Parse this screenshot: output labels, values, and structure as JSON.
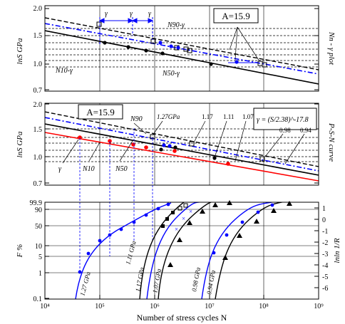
{
  "figure": {
    "x_axis_title": "Number of stress cycles N",
    "x_tick_labels": [
      "10⁴",
      "10⁵",
      "10⁶",
      "10⁷",
      "10⁸",
      "10⁹"
    ]
  },
  "chart_data": [
    {
      "type": "line",
      "panel": "top",
      "side_title": "Nn - γ plot",
      "ylabel": "lnS GPa",
      "xscale": "log",
      "xlim": [
        10000,
        1000000000
      ],
      "ylim": [
        0.7,
        2.0
      ],
      "y_tick_labels": [
        "0.7",
        "1.0",
        "1.5",
        "2.0"
      ],
      "annotation_box": "A=15.9",
      "annotations": [
        "γ",
        "γ",
        "γ",
        "N90-γ",
        "N10-γ",
        "N50-γ"
      ],
      "series": [
        {
          "color": "#000000",
          "dash": "dashed",
          "x": [
            10000,
            1000000000
          ],
          "y": [
            1.56,
            0.87
          ]
        },
        {
          "color": "#0000ff",
          "dash": "dashdot",
          "x": [
            10000,
            1000000000
          ],
          "y": [
            1.5,
            0.83
          ]
        },
        {
          "color": "#000000",
          "dash": "solid",
          "x": [
            10000,
            1000000000
          ],
          "y": [
            1.44,
            0.77
          ]
        }
      ],
      "markers": [
        {
          "shape": "square",
          "color": "#000000",
          "x": [
            80000,
            200000,
            800000,
            3000000,
            5000000,
            8000000,
            60000000,
            80000000
          ],
          "y": [
            1.33,
            1.31,
            1.29,
            1.15,
            1.17,
            1.16,
            0.95,
            0.96
          ]
        },
        {
          "shape": "dot",
          "color": "#0000ff",
          "x": [
            150000,
            300000,
            2500000,
            7000000,
            40000000
          ],
          "y": [
            1.32,
            1.3,
            1.16,
            1.12,
            0.96
          ]
        },
        {
          "shape": "dot",
          "color": "#000000",
          "x": [
            100000,
            500000,
            900000,
            20000000
          ],
          "y": [
            1.3,
            1.17,
            1.16,
            0.95
          ]
        }
      ]
    },
    {
      "type": "line",
      "panel": "middle",
      "side_title": "P-S-N curve",
      "ylabel": "lnS GPa",
      "xscale": "log",
      "xlim": [
        10000,
        1000000000
      ],
      "ylim": [
        0.7,
        2.0
      ],
      "y_tick_labels": [
        "0.7",
        "1.0",
        "1.5",
        "2.0"
      ],
      "annotation_box": "A=15.9",
      "formula": "γ = (S/2.38)^-17.8",
      "annotations": [
        "1.27GPa",
        "1.17",
        "1.11",
        "1.07",
        "0.98",
        "0.94",
        "N90",
        "N10",
        "N50",
        "γ"
      ],
      "series": [
        {
          "color": "#000000",
          "dash": "dashed",
          "x": [
            10000,
            1000000000
          ],
          "y": [
            1.56,
            0.87
          ]
        },
        {
          "color": "#0000ff",
          "dash": "dashdot",
          "x": [
            10000,
            1000000000
          ],
          "y": [
            1.5,
            0.83
          ]
        },
        {
          "color": "#000000",
          "dash": "solid",
          "x": [
            10000,
            1000000000
          ],
          "y": [
            1.44,
            0.77
          ]
        },
        {
          "color": "#ff0000",
          "dash": "solid",
          "x": [
            10000,
            1000000000
          ],
          "y": [
            1.37,
            0.72
          ]
        }
      ],
      "markers": [
        {
          "shape": "square",
          "color": "#000000",
          "x": [
            800000,
            3000000,
            60000000
          ],
          "y": [
            1.27,
            1.11,
            0.98
          ]
        },
        {
          "shape": "dot",
          "color": "#000000",
          "x": [
            1500000,
            8000000,
            25000000
          ],
          "y": [
            1.17,
            1.07,
            0.94
          ]
        },
        {
          "shape": "dot",
          "color": "#ff0000",
          "x": [
            40000,
            150000,
            400000,
            2000000,
            6000000,
            20000000,
            50000000
          ],
          "y": [
            1.27,
            1.2,
            1.17,
            1.07,
            1.07,
            0.94,
            0.94
          ]
        },
        {
          "shape": "dot",
          "color": "#0000ff",
          "x": [
            700000,
            1200000,
            2200000
          ],
          "y": [
            1.17,
            1.11,
            1.1
          ]
        }
      ]
    },
    {
      "type": "scatter",
      "panel": "bottom",
      "ylabel": "F %",
      "right_ylabel": "lnln 1/R",
      "xscale": "log",
      "xlim": [
        10000,
        1000000000
      ],
      "y_tick_labels": [
        "0.1",
        "1",
        "5",
        "10",
        "50",
        "90",
        "99.9"
      ],
      "right_tick_labels": [
        "1",
        "0",
        "-1",
        "-2",
        "-3",
        "-4",
        "-5",
        "-6"
      ],
      "curve_labels": [
        "1.27 GPa",
        "1.11 GPa",
        "1.17 GPa",
        "1.07 GPa",
        "0.98 GPa",
        "0.94 GPa"
      ],
      "curves": [
        {
          "color": "#0000ff",
          "name": "1.27 GPa",
          "x": [
            40000,
            60000,
            100000,
            200000,
            400000,
            800000
          ],
          "lnln": [
            -6.8,
            -4.5,
            -2.2,
            -0.8,
            0.2,
            1.0
          ]
        },
        {
          "color": "#000000",
          "name": "1.11 GPa",
          "x": [
            700000,
            1200000,
            2000000,
            3000000,
            5000000
          ],
          "lnln": [
            -6.8,
            -3.5,
            -1.5,
            0.0,
            1.2
          ]
        },
        {
          "color": "#000000",
          "name": "1.17 GPa",
          "x": [
            500000,
            900000,
            1500000,
            2500000
          ],
          "lnln": [
            -6.8,
            -3.5,
            -1.0,
            1.0
          ]
        },
        {
          "color": "#000000",
          "name": "1.07 GPa",
          "x": [
            1000000,
            1700000,
            3000000,
            6000000,
            12000000
          ],
          "lnln": [
            -6.8,
            -3.5,
            -1.5,
            0.2,
            1.4
          ]
        },
        {
          "color": "#0000ff",
          "name": "0.98 GPa",
          "x": [
            7000000,
            12000000,
            25000000,
            60000000,
            120000000
          ],
          "lnln": [
            -6.8,
            -3.5,
            -1.5,
            0.0,
            1.0
          ]
        },
        {
          "color": "#000000",
          "name": "0.94 GPa",
          "x": [
            15000000,
            25000000,
            50000000,
            100000000,
            200000000
          ],
          "lnln": [
            -6.8,
            -3.8,
            -1.5,
            0.2,
            1.3
          ]
        }
      ]
    }
  ]
}
